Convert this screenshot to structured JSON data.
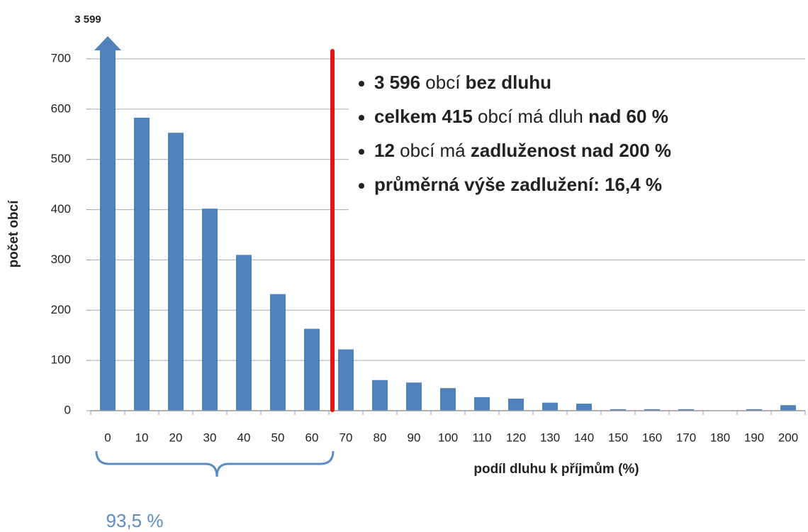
{
  "chart_data": {
    "type": "bar",
    "x_label": "podíl dluhu k příjmům (%)",
    "y_label": "počet obcí",
    "categories": [
      "0",
      "10",
      "20",
      "30",
      "40",
      "50",
      "60",
      "70",
      "80",
      "90",
      "100",
      "110",
      "120",
      "130",
      "140",
      "150",
      "160",
      "170",
      "180",
      "190",
      "200"
    ],
    "values": [
      3599,
      583,
      553,
      402,
      310,
      232,
      163,
      122,
      61,
      56,
      45,
      27,
      24,
      16,
      14,
      3,
      3,
      3,
      0,
      3,
      11
    ],
    "value_labels": [
      "3 599",
      null,
      null,
      null,
      null,
      null,
      null,
      null,
      null,
      null,
      null,
      null,
      null,
      null,
      null,
      null,
      null,
      null,
      null,
      null,
      null
    ],
    "color": "#4f81bd",
    "ylim": [
      0,
      700
    ],
    "yticks": [
      0,
      100,
      200,
      300,
      400,
      500,
      600,
      700
    ],
    "grid": true,
    "annotations": {
      "bullets": [
        [
          {
            "text": "3 596",
            "bold": true
          },
          {
            "text": " obcí ",
            "bold": false
          },
          {
            "text": "bez dluhu",
            "bold": true
          }
        ],
        [
          {
            "text": "celkem 415",
            "bold": true
          },
          {
            "text": " obcí má dluh ",
            "bold": false
          },
          {
            "text": "nad 60 %",
            "bold": true
          }
        ],
        [
          {
            "text": "12",
            "bold": true
          },
          {
            "text": " obcí má ",
            "bold": false
          },
          {
            "text": "zadluženost nad 200 %",
            "bold": true
          }
        ],
        [
          {
            "text": "průměrná výše zadlužení: 16,4 %",
            "bold": true
          }
        ]
      ],
      "bracket_label": "93,5 %"
    }
  }
}
